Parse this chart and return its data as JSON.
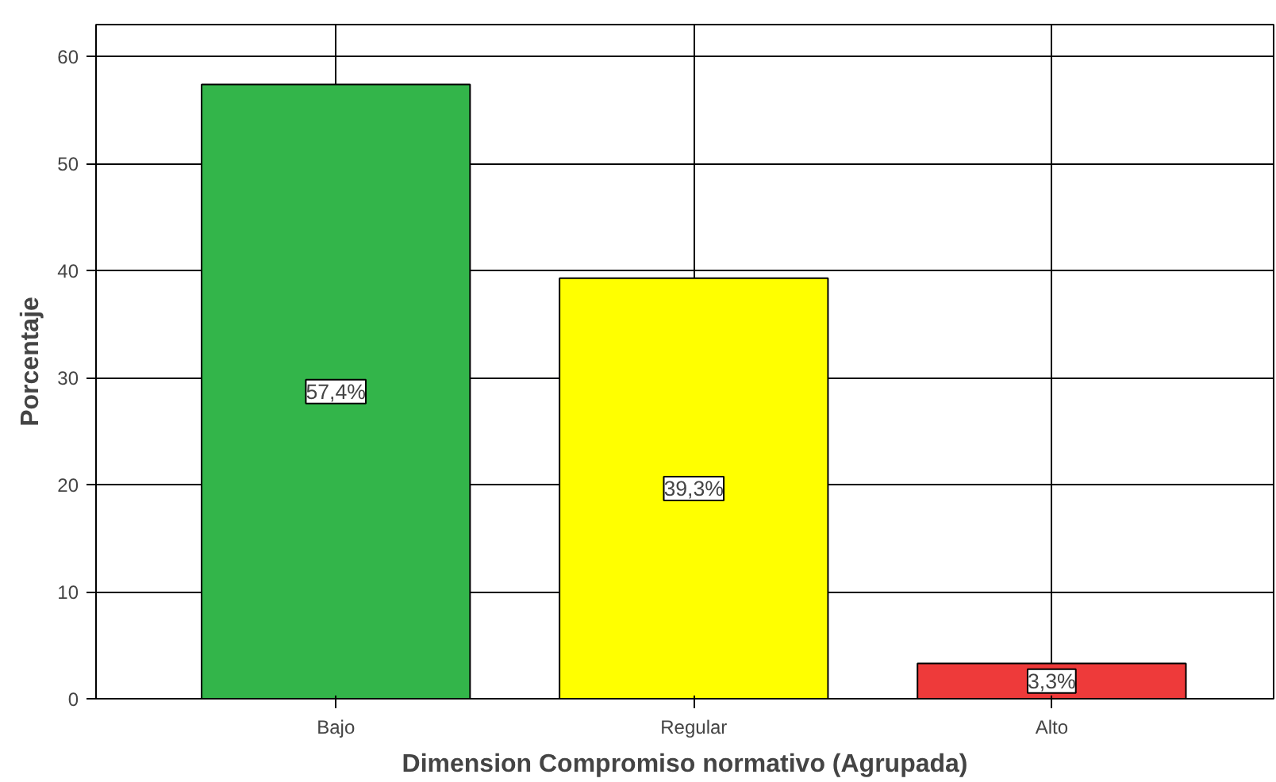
{
  "chart_data": {
    "type": "bar",
    "xlabel": "Dimension Compromiso normativo (Agrupada)",
    "ylabel": "Porcentaje",
    "categories": [
      "Bajo",
      "Regular",
      "Alto"
    ],
    "values": [
      57.4,
      39.3,
      3.3
    ],
    "colors": [
      "#33b54a",
      "#ffff00",
      "#ee3a3a"
    ],
    "value_labels": [
      "57,4%",
      "39,3%",
      "3,3%"
    ],
    "ylim": [
      0,
      63
    ],
    "yticks": [
      0,
      10,
      20,
      30,
      40,
      50,
      60
    ],
    "grid": true
  }
}
